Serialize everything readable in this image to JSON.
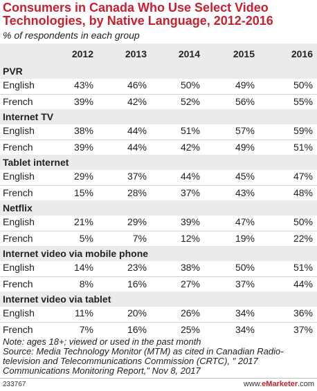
{
  "title": "Consumers in Canada Who Use Select Video Technologies, by Native Language, 2012-2016",
  "subtitle": "% of respondents in each group",
  "notes": "Note: ages 18+; viewed or used in the past month\nSource: Media Technology Monitor (MTM) as cited in Canadian Radio-television and Telecommunications Commission (CRTC), \" 2017 Communications Monitoring Report,\" Nov 8, 2017",
  "footer": {
    "id": "233767",
    "brand_prefix": "www.",
    "brand_name": "eMarketer",
    "brand_suffix": ".com"
  },
  "chart_data": {
    "type": "table",
    "columns": [
      "2012",
      "2013",
      "2014",
      "2015",
      "2016"
    ],
    "groups": [
      {
        "name": "PVR",
        "rows": [
          {
            "label": "English",
            "values": [
              "43%",
              "46%",
              "50%",
              "49%",
              "50%"
            ]
          },
          {
            "label": "French",
            "values": [
              "39%",
              "42%",
              "52%",
              "56%",
              "55%"
            ]
          }
        ]
      },
      {
        "name": "Internet TV",
        "rows": [
          {
            "label": "English",
            "values": [
              "38%",
              "44%",
              "51%",
              "57%",
              "59%"
            ]
          },
          {
            "label": "French",
            "values": [
              "39%",
              "44%",
              "42%",
              "49%",
              "51%"
            ]
          }
        ]
      },
      {
        "name": "Tablet internet",
        "rows": [
          {
            "label": "English",
            "values": [
              "29%",
              "37%",
              "44%",
              "45%",
              "47%"
            ]
          },
          {
            "label": "French",
            "values": [
              "15%",
              "28%",
              "37%",
              "43%",
              "48%"
            ]
          }
        ]
      },
      {
        "name": "Netflix",
        "rows": [
          {
            "label": "English",
            "values": [
              "21%",
              "29%",
              "39%",
              "47%",
              "50%"
            ]
          },
          {
            "label": "French",
            "values": [
              "5%",
              "7%",
              "12%",
              "19%",
              "22%"
            ]
          }
        ]
      },
      {
        "name": "Internet video via mobile phone",
        "rows": [
          {
            "label": "English",
            "values": [
              "14%",
              "23%",
              "38%",
              "50%",
              "51%"
            ]
          },
          {
            "label": "French",
            "values": [
              "8%",
              "16%",
              "27%",
              "37%",
              "44%"
            ]
          }
        ]
      },
      {
        "name": "Internet video via tablet",
        "rows": [
          {
            "label": "English",
            "values": [
              "11%",
              "20%",
              "26%",
              "34%",
              "36%"
            ]
          },
          {
            "label": "French",
            "values": [
              "7%",
              "16%",
              "25%",
              "34%",
              "37%"
            ]
          }
        ]
      }
    ]
  }
}
